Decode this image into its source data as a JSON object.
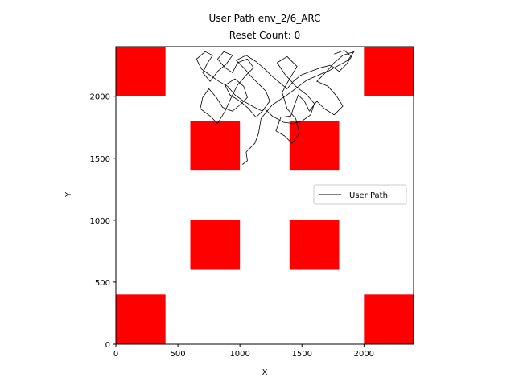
{
  "chart_data": {
    "type": "line",
    "title": "User Path env_2/6_ARC",
    "subtitle": "Reset Count: 0",
    "xlabel": "X",
    "ylabel": "Y",
    "xlim": [
      0,
      2400
    ],
    "ylim": [
      0,
      2400
    ],
    "xticks": [
      0,
      500,
      1000,
      1500,
      2000
    ],
    "yticks": [
      0,
      500,
      1000,
      1500,
      2000
    ],
    "grid": false,
    "legend": {
      "position": "right",
      "entries": [
        "User Path"
      ]
    },
    "colors": {
      "obstacle": "#ff0000",
      "path": "#000000",
      "background": "#ffffff"
    },
    "obstacles": [
      {
        "x": [
          0,
          400
        ],
        "y": [
          2000,
          2400
        ]
      },
      {
        "x": [
          2000,
          2400
        ],
        "y": [
          2000,
          2400
        ]
      },
      {
        "x": [
          600,
          1000
        ],
        "y": [
          1400,
          1800
        ]
      },
      {
        "x": [
          1400,
          1800
        ],
        "y": [
          1400,
          1800
        ]
      },
      {
        "x": [
          600,
          1000
        ],
        "y": [
          600,
          1000
        ]
      },
      {
        "x": [
          1400,
          1800
        ],
        "y": [
          600,
          1000
        ]
      },
      {
        "x": [
          0,
          400
        ],
        "y": [
          0,
          400
        ]
      },
      {
        "x": [
          2000,
          2400
        ],
        "y": [
          0,
          400
        ]
      }
    ],
    "series": [
      {
        "name": "User Path",
        "color": "#000000",
        "points": [
          [
            1020,
            1450
          ],
          [
            1060,
            1480
          ],
          [
            1050,
            1550
          ],
          [
            1120,
            1620
          ],
          [
            1150,
            1700
          ],
          [
            1170,
            1820
          ],
          [
            1260,
            1930
          ],
          [
            1380,
            2010
          ],
          [
            1460,
            2070
          ],
          [
            1540,
            2130
          ],
          [
            1610,
            2160
          ],
          [
            1700,
            2200
          ],
          [
            1760,
            2270
          ],
          [
            1830,
            2330
          ],
          [
            1920,
            2360
          ],
          [
            1870,
            2290
          ],
          [
            1780,
            2240
          ],
          [
            1690,
            2190
          ],
          [
            1620,
            2120
          ],
          [
            1710,
            2080
          ],
          [
            1780,
            2000
          ],
          [
            1830,
            1920
          ],
          [
            1760,
            1850
          ],
          [
            1680,
            1900
          ],
          [
            1620,
            1960
          ],
          [
            1560,
            1880
          ],
          [
            1520,
            1960
          ],
          [
            1470,
            2010
          ],
          [
            1440,
            1930
          ],
          [
            1410,
            1840
          ],
          [
            1330,
            1830
          ],
          [
            1290,
            1720
          ],
          [
            1360,
            1680
          ],
          [
            1420,
            1620
          ],
          [
            1480,
            1700
          ],
          [
            1450,
            1820
          ],
          [
            1380,
            1900
          ],
          [
            1340,
            2030
          ],
          [
            1400,
            2140
          ],
          [
            1460,
            2240
          ],
          [
            1380,
            2320
          ],
          [
            1300,
            2270
          ],
          [
            1360,
            2180
          ],
          [
            1450,
            2080
          ],
          [
            1540,
            2010
          ],
          [
            1600,
            1940
          ],
          [
            1570,
            1850
          ],
          [
            1500,
            1800
          ],
          [
            1430,
            1780
          ],
          [
            1350,
            1790
          ],
          [
            1260,
            1840
          ],
          [
            1200,
            1900
          ],
          [
            1130,
            1830
          ],
          [
            1070,
            1900
          ],
          [
            1000,
            1960
          ],
          [
            920,
            2010
          ],
          [
            880,
            2090
          ],
          [
            960,
            2140
          ],
          [
            1030,
            2080
          ],
          [
            1060,
            1990
          ],
          [
            1000,
            1930
          ],
          [
            940,
            1880
          ],
          [
            860,
            1910
          ],
          [
            810,
            1990
          ],
          [
            750,
            2060
          ],
          [
            700,
            1990
          ],
          [
            680,
            1900
          ],
          [
            760,
            1840
          ],
          [
            820,
            1780
          ],
          [
            880,
            1880
          ],
          [
            930,
            1990
          ],
          [
            980,
            2090
          ],
          [
            1050,
            2170
          ],
          [
            1110,
            2230
          ],
          [
            1060,
            2300
          ],
          [
            980,
            2270
          ],
          [
            940,
            2190
          ],
          [
            880,
            2230
          ],
          [
            820,
            2300
          ],
          [
            870,
            2360
          ],
          [
            940,
            2330
          ],
          [
            890,
            2260
          ],
          [
            820,
            2200
          ],
          [
            760,
            2120
          ],
          [
            700,
            2190
          ],
          [
            740,
            2270
          ],
          [
            780,
            2330
          ],
          [
            720,
            2360
          ],
          [
            650,
            2300
          ],
          [
            690,
            2220
          ],
          [
            760,
            2170
          ],
          [
            830,
            2120
          ],
          [
            900,
            2080
          ],
          [
            960,
            2010
          ],
          [
            1030,
            1960
          ],
          [
            1100,
            1920
          ],
          [
            1180,
            1880
          ],
          [
            1240,
            1960
          ],
          [
            1210,
            2040
          ],
          [
            1150,
            2100
          ],
          [
            1090,
            2160
          ],
          [
            1040,
            2220
          ],
          [
            970,
            2290
          ],
          [
            1050,
            2330
          ],
          [
            1130,
            2280
          ],
          [
            1200,
            2220
          ],
          [
            1260,
            2160
          ],
          [
            1320,
            2110
          ],
          [
            1380,
            2060
          ],
          [
            1430,
            2120
          ],
          [
            1490,
            2170
          ],
          [
            1570,
            2200
          ],
          [
            1650,
            2230
          ],
          [
            1730,
            2250
          ],
          [
            1800,
            2200
          ],
          [
            1860,
            2260
          ],
          [
            1900,
            2320
          ],
          [
            1840,
            2370
          ],
          [
            1760,
            2340
          ]
        ]
      }
    ]
  }
}
